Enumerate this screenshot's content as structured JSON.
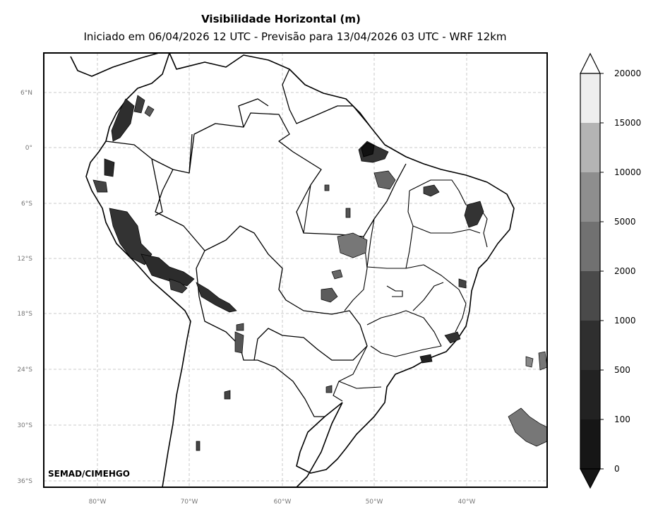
{
  "title": "Visibilidade Horizontal (m)",
  "subtitle": "Iniciado em 06/04/2026 12 UTC - Previsão para 13/04/2026 03 UTC - WRF 12km",
  "credit": "SEMAD/CIMEHGO",
  "lat_ticks": [
    "6°N",
    "0°",
    "6°S",
    "12°S",
    "18°S",
    "24°S",
    "30°S",
    "36°S"
  ],
  "lon_ticks": [
    "80°W",
    "70°W",
    "60°W",
    "50°W",
    "40°W"
  ],
  "colorbar": {
    "labels": [
      "20000",
      "15000",
      "10000",
      "5000",
      "2000",
      "1000",
      "500",
      "100",
      "0"
    ],
    "colors": [
      "#eeeeee",
      "#b4b4b4",
      "#8e8e8e",
      "#717171",
      "#4a4a4a",
      "#2f2f2f",
      "#222222",
      "#161616"
    ]
  },
  "colors": {
    "land_fill": "#ffffff",
    "border": "#000000",
    "grid": "#bbbbbb",
    "fog": "#3a3a3a"
  }
}
